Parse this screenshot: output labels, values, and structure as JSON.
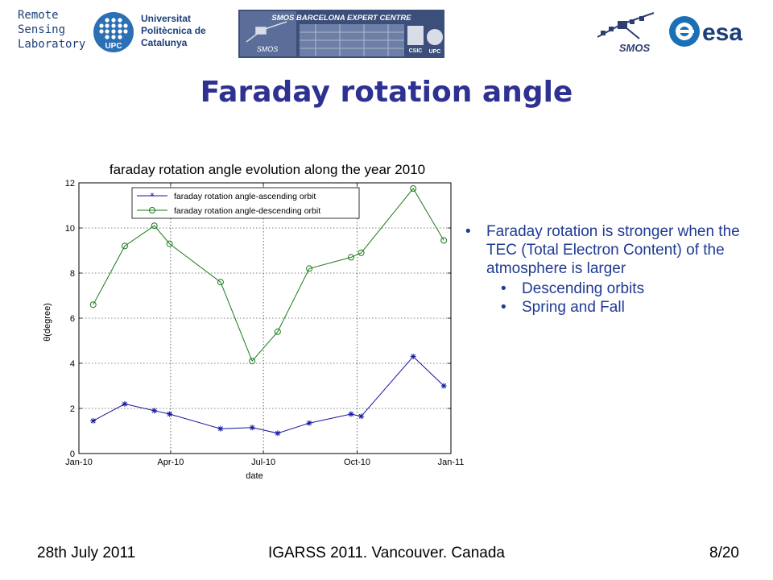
{
  "header": {
    "rsl_lines": [
      "Remote",
      "Sensing",
      "Laboratory"
    ],
    "upc_logo_text": "UPC",
    "university_lines": [
      "Universitat",
      "Politècnica de",
      "Catalunya"
    ],
    "bec_title": "SMOS BARCELONA EXPERT CENTRE",
    "bec_logo_small_a": "SMOS",
    "bec_logo_small_b": "CSIC",
    "bec_logo_small_c": "UPC",
    "smos_logo_text": "SMOS",
    "esa_logo_text": "esa"
  },
  "slide": {
    "title": "Faraday rotation angle"
  },
  "bullets": {
    "main": "Faraday rotation is stronger when the TEC (Total Electron Content) of the atmosphere is larger",
    "sub": [
      "Descending orbits",
      "Spring and Fall"
    ]
  },
  "footer": {
    "date": "28th July 2011",
    "conference": "IGARSS 2011. Vancouver. Canada",
    "page": "8/20"
  },
  "colors": {
    "title": "#2e3192",
    "bullet_text": "#1f3a93",
    "ascending": "#1414a0",
    "descending": "#1a7a1a"
  },
  "chart_data": {
    "type": "line",
    "title": "faraday rotation angle evolution along the year 2010",
    "xlabel": "date",
    "ylabel": "θ(degree)",
    "xlim": [
      "2010-01-01",
      "2011-01-01"
    ],
    "ylim": [
      0,
      12
    ],
    "yticks": [
      "0",
      "2",
      "4",
      "6",
      "8",
      "10",
      "12"
    ],
    "xticks": [
      {
        "date": "2010-01-01",
        "label": "Jan-10"
      },
      {
        "date": "2010-04-01",
        "label": "Apr-10"
      },
      {
        "date": "2010-07-01",
        "label": "Jul-10"
      },
      {
        "date": "2010-10-01",
        "label": "Oct-10"
      },
      {
        "date": "2011-01-01",
        "label": "Jan-11"
      }
    ],
    "grid": true,
    "legend_position": "top-right",
    "x": [
      "2010-01-15",
      "2010-02-15",
      "2010-03-16",
      "2010-03-31",
      "2010-05-20",
      "2010-06-20",
      "2010-07-15",
      "2010-08-15",
      "2010-09-25",
      "2010-10-05",
      "2010-11-25",
      "2010-12-25"
    ],
    "series": [
      {
        "name": "faraday rotation angle-ascending orbit",
        "marker": "star",
        "color": "#1414a0",
        "values": [
          1.45,
          2.2,
          1.9,
          1.75,
          1.1,
          1.15,
          0.9,
          1.35,
          1.75,
          1.65,
          4.3,
          3.0
        ]
      },
      {
        "name": "faraday rotation angle-descending orbit",
        "marker": "circle",
        "color": "#1a7a1a",
        "values": [
          6.6,
          9.2,
          10.1,
          9.3,
          7.6,
          4.1,
          5.4,
          8.2,
          8.7,
          8.9,
          11.75,
          9.45
        ]
      }
    ]
  }
}
